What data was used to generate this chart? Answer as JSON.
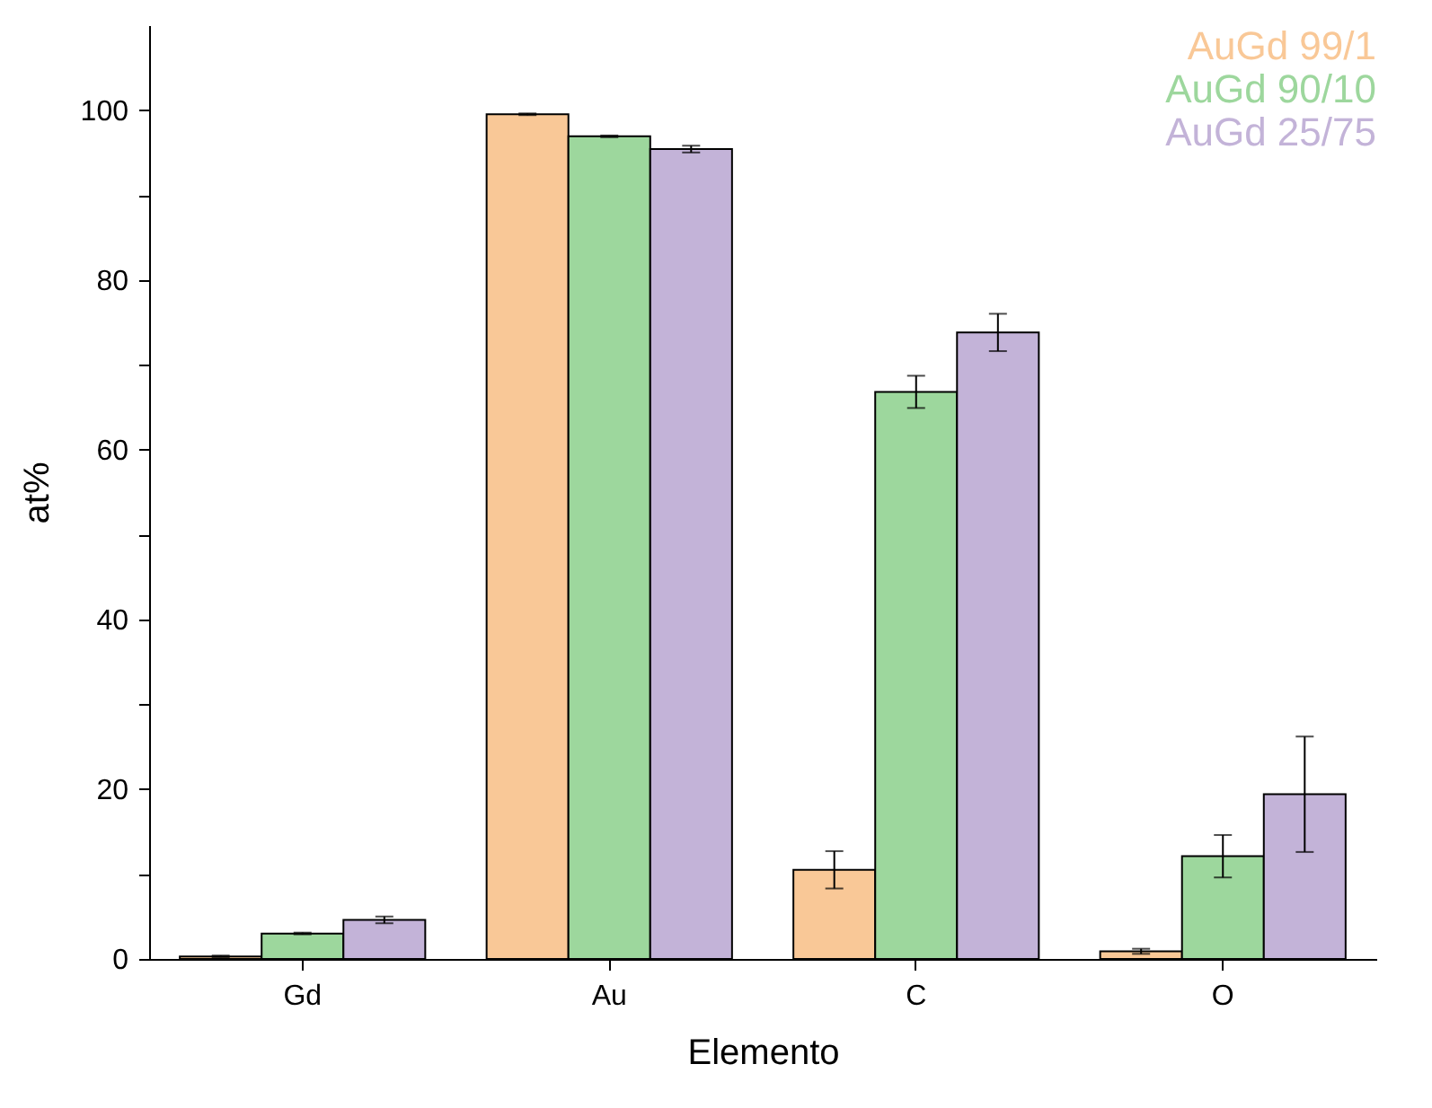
{
  "chart_data": {
    "type": "bar",
    "xlabel": "Elemento",
    "ylabel": "at%",
    "categories": [
      "Gd",
      "Au",
      "C",
      "O"
    ],
    "series": [
      {
        "name": "AuGd 99/1",
        "color": "#f9c897",
        "values": [
          0.3,
          99.5,
          10.5,
          0.9
        ],
        "errors": [
          0.1,
          0.1,
          2.2,
          0.3
        ]
      },
      {
        "name": "AuGd 90/10",
        "color": "#9dd79d",
        "values": [
          3.0,
          96.9,
          66.8,
          12.1
        ],
        "errors": [
          0.1,
          0.1,
          1.9,
          2.5
        ]
      },
      {
        "name": "AuGd 25/75",
        "color": "#c3b3d8",
        "values": [
          4.6,
          95.4,
          73.8,
          19.4
        ],
        "errors": [
          0.4,
          0.4,
          2.2,
          6.8
        ]
      }
    ],
    "ylim": [
      0,
      110
    ],
    "yticks": [
      0,
      {
        "value": 10,
        "label": null
      },
      20,
      {
        "value": 30,
        "label": null
      },
      40,
      {
        "value": 50,
        "label": null
      },
      60,
      {
        "value": 70,
        "label": null
      },
      80,
      {
        "value": 90,
        "label": null
      },
      100
    ],
    "legend": "top right",
    "grid": false
  }
}
